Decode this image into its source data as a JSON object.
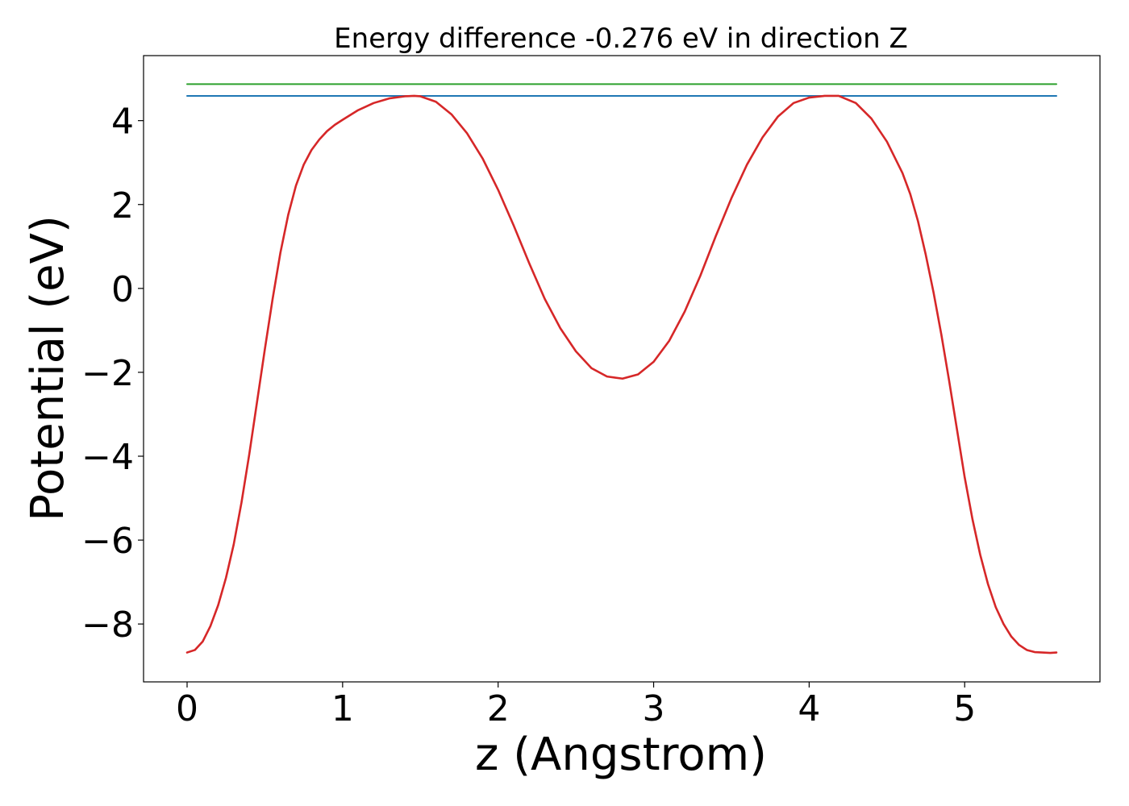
{
  "chart_data": {
    "type": "line",
    "title": "Energy difference -0.276 eV in direction Z",
    "xlabel": "z (Angstrom)",
    "ylabel": "Potential (eV)",
    "xlim": [
      -0.28,
      5.87
    ],
    "ylim": [
      -9.38,
      5.55
    ],
    "xticks": [
      0,
      1,
      2,
      3,
      4,
      5
    ],
    "xtick_labels": [
      "0",
      "1",
      "2",
      "3",
      "4",
      "5"
    ],
    "yticks": [
      -8,
      -6,
      -4,
      -2,
      0,
      2,
      4
    ],
    "ytick_labels": [
      "−8",
      "−6",
      "−4",
      "−2",
      "0",
      "2",
      "4"
    ],
    "grid": false,
    "legend": "none",
    "series": [
      {
        "color": "#2ca02c",
        "x": [
          0,
          5.59
        ],
        "y": [
          4.87,
          4.87
        ]
      },
      {
        "color": "#1f77b4",
        "x": [
          0,
          5.59
        ],
        "y": [
          4.59,
          4.59
        ]
      },
      {
        "color": "#d62728",
        "x": [
          0,
          0.05,
          0.1,
          0.15,
          0.2,
          0.25,
          0.3,
          0.35,
          0.4,
          0.45,
          0.5,
          0.55,
          0.6,
          0.65,
          0.7,
          0.75,
          0.8,
          0.85,
          0.9,
          0.95,
          1.0,
          1.1,
          1.2,
          1.3,
          1.4,
          1.46,
          1.5,
          1.6,
          1.7,
          1.8,
          1.9,
          2.0,
          2.1,
          2.2,
          2.3,
          2.4,
          2.5,
          2.6,
          2.7,
          2.8,
          2.9,
          3.0,
          3.1,
          3.2,
          3.3,
          3.4,
          3.5,
          3.6,
          3.7,
          3.8,
          3.9,
          4.0,
          4.1,
          4.19,
          4.3,
          4.4,
          4.5,
          4.6,
          4.65,
          4.7,
          4.75,
          4.8,
          4.85,
          4.9,
          4.95,
          5.0,
          5.05,
          5.1,
          5.15,
          5.2,
          5.25,
          5.3,
          5.35,
          5.4,
          5.45,
          5.5,
          5.55,
          5.59
        ],
        "y": [
          -8.68,
          -8.62,
          -8.42,
          -8.05,
          -7.55,
          -6.9,
          -6.1,
          -5.1,
          -3.95,
          -2.7,
          -1.45,
          -0.25,
          0.85,
          1.75,
          2.45,
          2.95,
          3.3,
          3.55,
          3.75,
          3.9,
          4.02,
          4.25,
          4.42,
          4.53,
          4.58,
          4.59,
          4.58,
          4.45,
          4.15,
          3.7,
          3.1,
          2.35,
          1.5,
          0.6,
          -0.25,
          -0.95,
          -1.5,
          -1.9,
          -2.1,
          -2.15,
          -2.05,
          -1.75,
          -1.25,
          -0.55,
          0.3,
          1.25,
          2.15,
          2.95,
          3.6,
          4.1,
          4.42,
          4.55,
          4.59,
          4.59,
          4.42,
          4.05,
          3.5,
          2.75,
          2.25,
          1.6,
          0.8,
          -0.1,
          -1.1,
          -2.2,
          -3.35,
          -4.5,
          -5.5,
          -6.35,
          -7.05,
          -7.6,
          -8.0,
          -8.3,
          -8.5,
          -8.62,
          -8.67,
          -8.68,
          -8.69,
          -8.68
        ]
      }
    ]
  }
}
